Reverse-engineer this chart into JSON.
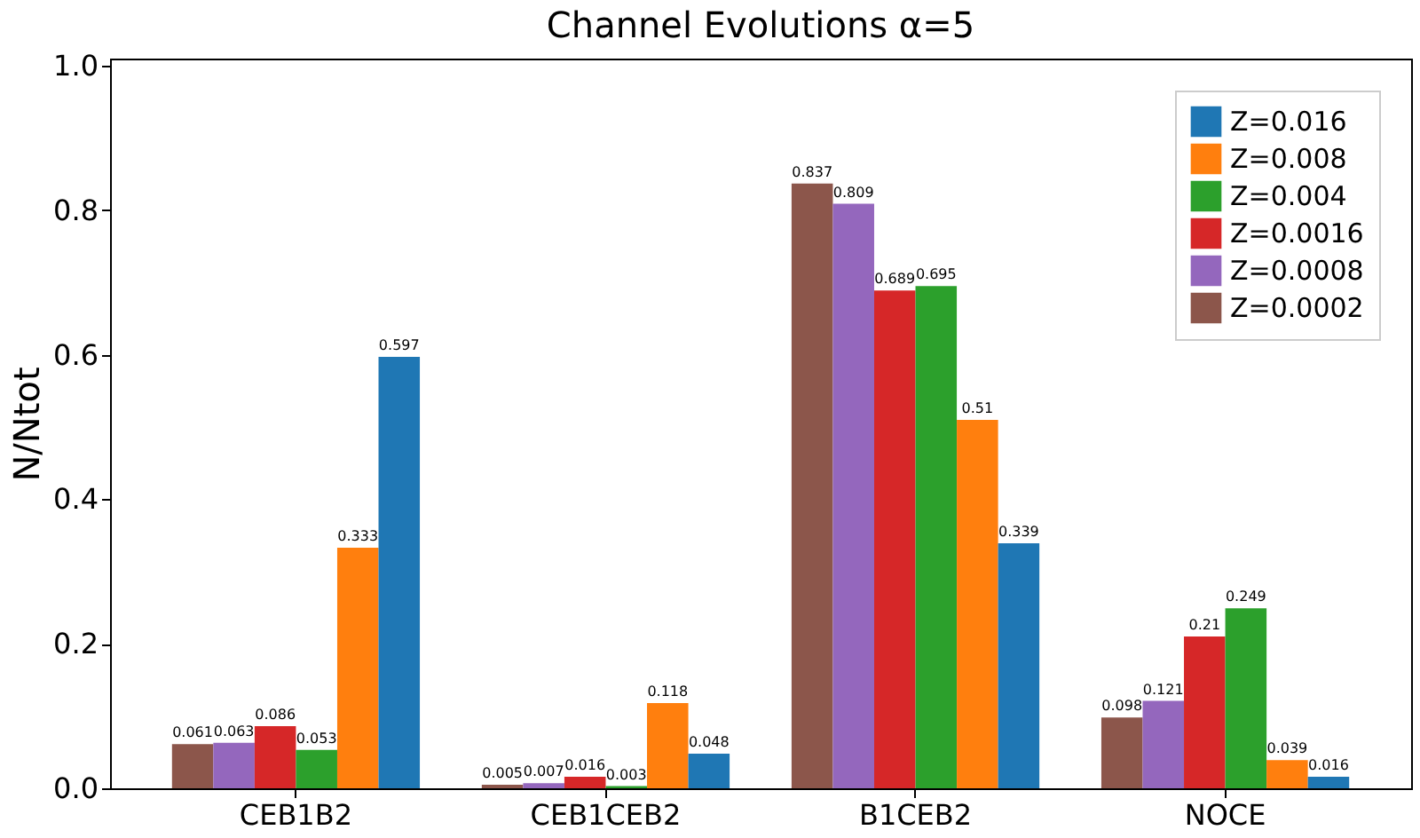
{
  "chart_data": {
    "type": "bar",
    "title": "Channel Evolutions   α=5",
    "ylabel": "N/Ntot",
    "categories": [
      "CEB1B2",
      "CEB1CEB2",
      "B1CEB2",
      "NOCE"
    ],
    "series": [
      {
        "name": "Z=0.0002",
        "color": "#8c564b",
        "values": [
          0.061,
          0.005,
          0.837,
          0.098
        ]
      },
      {
        "name": "Z=0.0008",
        "color": "#9467bd",
        "values": [
          0.063,
          0.007,
          0.809,
          0.121
        ]
      },
      {
        "name": "Z=0.0016",
        "color": "#d62728",
        "values": [
          0.086,
          0.016,
          0.689,
          0.21
        ]
      },
      {
        "name": "Z=0.004",
        "color": "#2ca02c",
        "values": [
          0.053,
          0.003,
          0.695,
          0.249
        ]
      },
      {
        "name": "Z=0.008",
        "color": "#ff7f0e",
        "values": [
          0.333,
          0.118,
          0.51,
          0.039
        ]
      },
      {
        "name": "Z=0.016",
        "color": "#1f77b4",
        "values": [
          0.597,
          0.048,
          0.339,
          0.016
        ]
      }
    ],
    "ylim": [
      0,
      1.01
    ],
    "yticks": [
      {
        "value": 0,
        "label": "0.0"
      },
      0.2,
      0.4,
      0.6,
      0.8,
      {
        "value": 1.0,
        "label": "1.0"
      }
    ],
    "data_labels": true,
    "legend": "top right",
    "grid": false
  }
}
